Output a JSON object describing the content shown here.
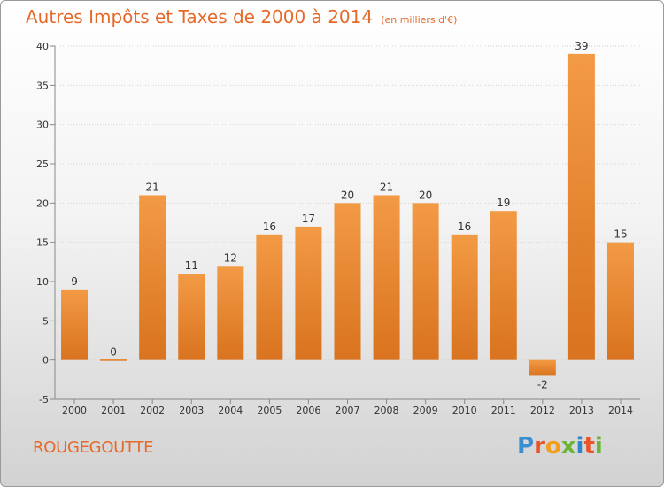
{
  "header": {
    "title": "Autres Impôts et Taxes de 2000 à 2014",
    "unit": "(en milliers d'€)"
  },
  "footer": {
    "commune": "ROUGEGOUTTE",
    "brand": "Proxiti"
  },
  "colors": {
    "bar": "#f39a45",
    "bar_dark": "#d9731f",
    "title": "#e56a2a"
  },
  "chart_data": {
    "type": "bar",
    "title": "Autres Impôts et Taxes de 2000 à 2014",
    "subtitle": "(en milliers d'€)",
    "categories": [
      "2000",
      "2001",
      "2002",
      "2003",
      "2004",
      "2005",
      "2006",
      "2007",
      "2008",
      "2009",
      "2010",
      "2011",
      "2012",
      "2013",
      "2014"
    ],
    "values": [
      9,
      0,
      21,
      11,
      12,
      16,
      17,
      20,
      21,
      20,
      16,
      19,
      -2,
      39,
      15
    ],
    "ylim": [
      -5,
      40
    ],
    "yticks": [
      -5,
      0,
      5,
      10,
      15,
      20,
      25,
      30,
      35,
      40
    ],
    "grid": true,
    "legend": "none"
  }
}
